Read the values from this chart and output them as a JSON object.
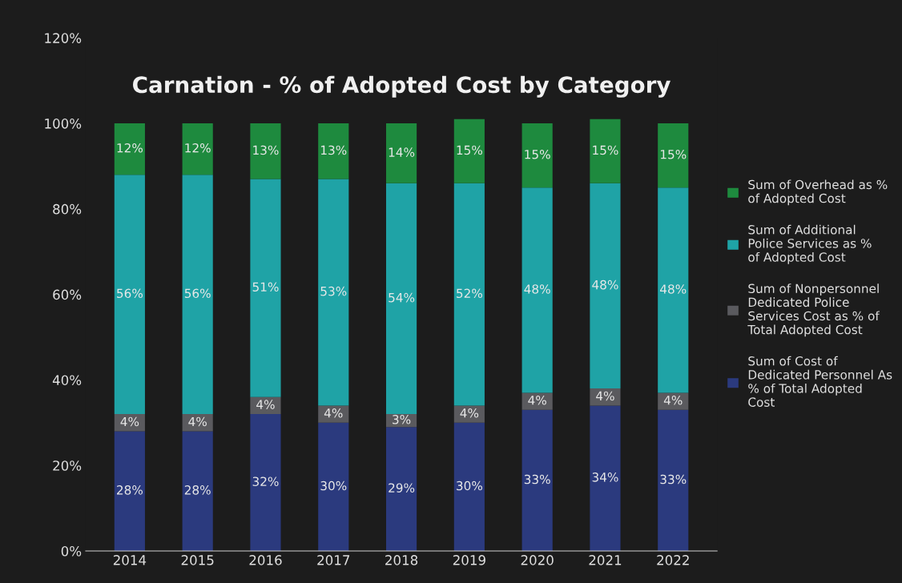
{
  "chart_data": {
    "type": "bar",
    "title": "Carnation - % of Adopted Cost by Category",
    "stacked": true,
    "categories": [
      "2014",
      "2015",
      "2016",
      "2017",
      "2018",
      "2019",
      "2020",
      "2021",
      "2022"
    ],
    "series": [
      {
        "name": "Sum of Cost of Dedicated Personnel As % of Total Adopted Cost",
        "color": "#2b3a7e",
        "values": [
          28,
          28,
          32,
          30,
          29,
          30,
          33,
          34,
          33
        ],
        "value_labels": [
          "28%",
          "28%",
          "32%",
          "30%",
          "29%",
          "30%",
          "33%",
          "34%",
          "33%"
        ]
      },
      {
        "name": "Sum of Nonpersonnel Dedicated Police Services Cost as % of Total Adopted Cost",
        "color": "#5a5a5e",
        "values": [
          4,
          4,
          4,
          4,
          3,
          4,
          4,
          4,
          4
        ],
        "value_labels": [
          "4%",
          "4%",
          "4%",
          "4%",
          "3%",
          "4%",
          "4%",
          "4%",
          "4%"
        ]
      },
      {
        "name": "Sum of Additional Police Services as % of Adopted Cost",
        "color": "#1fa3a6",
        "values": [
          56,
          56,
          51,
          53,
          54,
          52,
          48,
          48,
          48
        ],
        "value_labels": [
          "56%",
          "56%",
          "51%",
          "53%",
          "54%",
          "52%",
          "48%",
          "48%",
          "48%"
        ]
      },
      {
        "name": "Sum of Overhead as % of Adopted Cost",
        "color": "#1e8a3e",
        "values": [
          12,
          12,
          13,
          13,
          14,
          15,
          15,
          15,
          15
        ],
        "value_labels": [
          "12%",
          "12%",
          "13%",
          "13%",
          "14%",
          "15%",
          "15%",
          "15%",
          "15%"
        ]
      }
    ],
    "ylim": [
      0,
      120
    ],
    "yticks": [
      {
        "value": 0,
        "label": "0%"
      },
      {
        "value": 20,
        "label": "20%"
      },
      {
        "value": 40,
        "label": "40%"
      },
      {
        "value": 60,
        "label": "60%"
      },
      {
        "value": 80,
        "label": "80%"
      },
      {
        "value": 100,
        "label": "100%"
      },
      {
        "value": 120,
        "label": "120%"
      }
    ],
    "grid": false,
    "legend": "right"
  }
}
